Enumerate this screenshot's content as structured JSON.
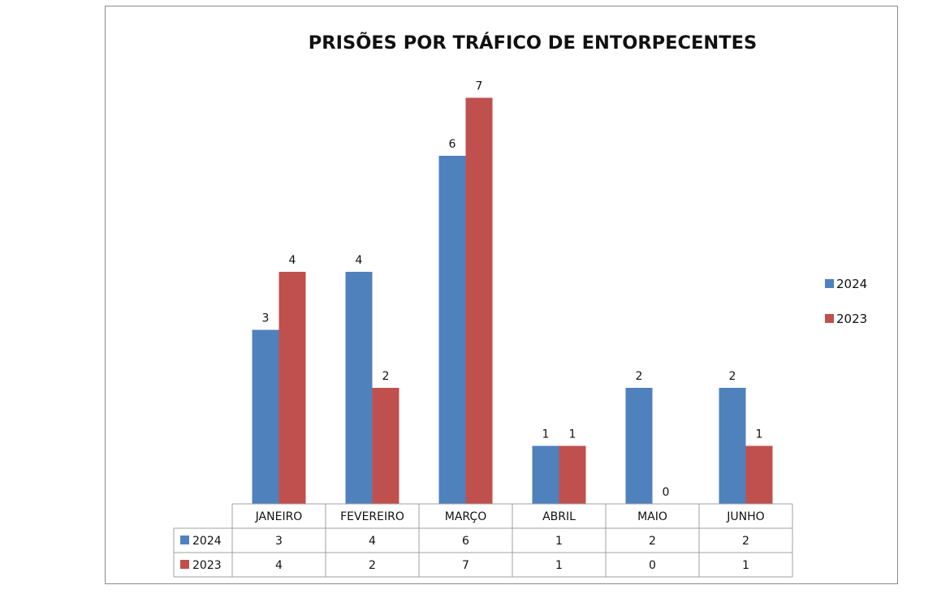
{
  "chart_data": {
    "type": "bar",
    "title": "PRISÕES POR TRÁFICO DE ENTORPECENTES",
    "categories": [
      "JANEIRO",
      "FEVEREIRO",
      "MARÇO",
      "ABRIL",
      "MAIO",
      "JUNHO"
    ],
    "series": [
      {
        "name": "2024",
        "values": [
          3,
          4,
          6,
          1,
          2,
          2
        ],
        "color": "#4f81bd"
      },
      {
        "name": "2023",
        "values": [
          4,
          2,
          7,
          1,
          0,
          1
        ],
        "color": "#c0504d"
      }
    ],
    "ylim": [
      0,
      7
    ],
    "grid": false,
    "legend_position": "right",
    "data_table": true
  }
}
